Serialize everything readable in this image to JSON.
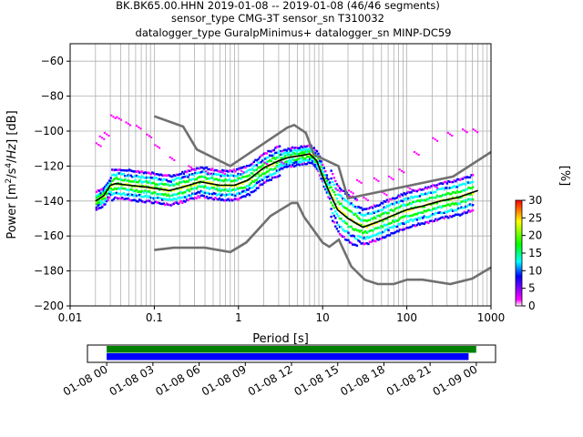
{
  "figure": {
    "title_lines": [
      "BK.BK65.00.HHN   2019-01-08 -- 2019-01-08  (46/46 segments)",
      "sensor_type CMG-3T sensor_sn T310032",
      "datalogger_type GuralpMinimus+ datalogger_sn MINP-DC59"
    ]
  },
  "chart_data": [
    {
      "type": "heatmap",
      "xlabel": "Period [s]",
      "ylabel": "Power [m²/s⁴/Hz] [dB]",
      "xscale": "log",
      "xlim": [
        0.01,
        1000
      ],
      "ylim": [
        -200,
        -50
      ],
      "grid": true,
      "x_ticks": [
        0.01,
        0.1,
        1,
        10,
        100,
        1000
      ],
      "x_tick_labels": [
        "0.01",
        "0.1",
        "1",
        "10",
        "100",
        "1000"
      ],
      "y_ticks": [
        -200,
        -180,
        -160,
        -140,
        -120,
        -100,
        -80,
        -60
      ],
      "y_tick_labels": [
        "−200",
        "−180",
        "−160",
        "−140",
        "−120",
        "−100",
        "−80",
        "−60"
      ],
      "colorbar": {
        "label": "[%]",
        "range": [
          0,
          30
        ],
        "ticks": [
          0,
          5,
          10,
          15,
          20,
          25,
          30
        ],
        "tick_labels": [
          "0",
          "5",
          "10",
          "15",
          "20",
          "25",
          "30"
        ],
        "colors": [
          "#ffffff",
          "#ff00ff",
          "#0000ff",
          "#00ffff",
          "#00ff00",
          "#ffff00",
          "#ff0000"
        ]
      },
      "mode_curve": {
        "x": [
          0.02,
          0.025,
          0.03,
          0.035,
          0.05,
          0.08,
          0.15,
          0.22,
          0.35,
          0.6,
          0.9,
          1.3,
          2,
          3,
          4,
          5.5,
          7,
          8.5,
          10,
          12,
          15,
          20,
          30,
          45,
          70,
          100,
          150,
          250,
          400,
          700
        ],
        "y": [
          -140,
          -137,
          -131,
          -130,
          -131,
          -132,
          -134,
          -132,
          -129,
          -131,
          -131,
          -128,
          -121,
          -117,
          -115,
          -114,
          -113,
          -117,
          -126,
          -135,
          -145,
          -150,
          -155,
          -152,
          -148,
          -145,
          -143,
          -140,
          -138,
          -134
        ]
      },
      "noise_models": {
        "high": {
          "x": [
            0.1,
            0.22,
            0.32,
            0.8,
            3.8,
            4.6,
            6.3,
            7.9,
            15.4,
            20,
            354.8,
            1000
          ],
          "y": [
            -91.5,
            -97.4,
            -110.5,
            -120,
            -98,
            -96.5,
            -101,
            -113.5,
            -120,
            -138.5,
            -126,
            -112
          ]
        },
        "low": {
          "x": [
            0.1,
            0.17,
            0.4,
            0.8,
            1.24,
            2.4,
            4.3,
            5,
            6,
            10,
            12,
            15.6,
            21.9,
            31.6,
            45,
            70,
            101,
            154,
            328,
            600,
            1000
          ],
          "y": [
            -168,
            -166.7,
            -166.7,
            -169.2,
            -163.7,
            -148.6,
            -141.1,
            -141.1,
            -149,
            -163.8,
            -166.2,
            -162.1,
            -177.5,
            -185,
            -187.5,
            -187.5,
            -185,
            -185,
            -187.5,
            -184.4,
            -178
          ]
        }
      }
    },
    {
      "type": "timeline",
      "x_ticks": [
        "01-08 00",
        "01-08 03",
        "01-08 06",
        "01-08 09",
        "01-08 12",
        "01-08 15",
        "01-08 18",
        "01-08 21",
        "01-09 00"
      ],
      "xlim": [
        "01-07 22:45",
        "01-09 01:15"
      ],
      "bars": [
        {
          "color": "#008000",
          "start": "01-08 00:00",
          "end": "01-09 00:00"
        },
        {
          "color": "#0000ff",
          "start": "01-08 00:00",
          "end": "01-08 23:30"
        }
      ]
    }
  ]
}
